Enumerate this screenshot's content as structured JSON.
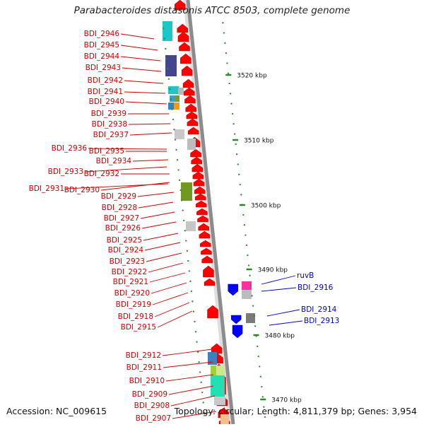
{
  "title": "Parabacteroides distasonis ATCC 8503, complete genome",
  "accession": "Accession: NC_009615",
  "topology": "Topology: circular; Length: 4,811,379 bp; Genes: 3,954",
  "colors": {
    "backbone": "#8c8c8c",
    "forward_gene": "#ff0000",
    "reverse_gene": "#0000ff",
    "tick": "#2a8a2a",
    "label_left": "#cc0000",
    "label_right": "#0000cc"
  },
  "scale_labels": [
    "3520 kbp",
    "3510 kbp",
    "3500 kbp",
    "3490 kbp",
    "3480 kbp",
    "3470 kbp"
  ],
  "left_labels": [
    "BDI_2946",
    "BDI_2945",
    "BDI_2944",
    "BDI_2943",
    "BDI_2942",
    "BDI_2941",
    "BDI_2940",
    "BDI_2939",
    "BDI_2938",
    "BDI_2937",
    "BDI_2936",
    "BDI_2935",
    "BDI_2934",
    "BDI_2933",
    "BDI_2932",
    "BDI_2931",
    "BDI_2930",
    "BDI_2929",
    "BDI_2928",
    "BDI_2927",
    "BDI_2926",
    "BDI_2925",
    "BDI_2924",
    "BDI_2923",
    "BDI_2922",
    "BDI_2921",
    "BDI_2920",
    "BDI_2919",
    "BDI_2918",
    "BDI_2915",
    "BDI_2912",
    "BDI_2911",
    "BDI_2910",
    "BDI_2909",
    "BDI_2908",
    "BDI_2907"
  ],
  "right_labels": [
    "ruvB",
    "BDI_2916",
    "BDI_2914",
    "BDI_2913"
  ]
}
